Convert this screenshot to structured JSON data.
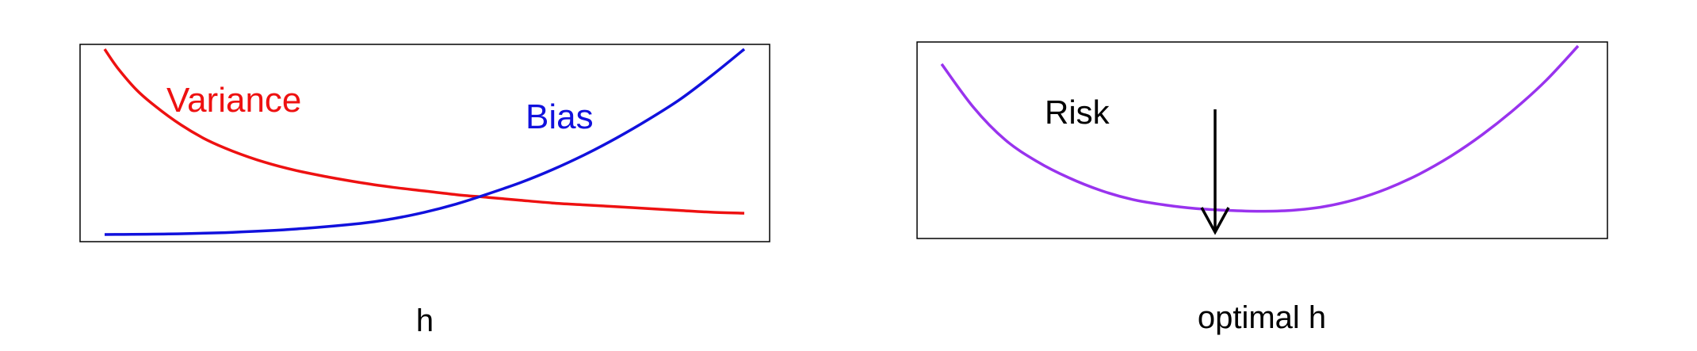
{
  "chart_data": [
    {
      "type": "line",
      "xlabel": "h",
      "series": [
        {
          "name": "Variance",
          "color": "#ee1111",
          "x": [
            0,
            0.02,
            0.05,
            0.08,
            0.12,
            0.16,
            0.2,
            0.25,
            0.3,
            0.35,
            0.4,
            0.45,
            0.5,
            0.55,
            0.6,
            0.65,
            0.7,
            0.75,
            0.8,
            0.85,
            0.9,
            0.95,
            1.0
          ],
          "values": [
            1.0,
            0.9,
            0.78,
            0.69,
            0.59,
            0.51,
            0.45,
            0.39,
            0.345,
            0.31,
            0.28,
            0.255,
            0.235,
            0.215,
            0.2,
            0.185,
            0.17,
            0.16,
            0.15,
            0.14,
            0.13,
            0.12,
            0.115
          ]
        },
        {
          "name": "Bias",
          "color": "#1111dd",
          "x": [
            0,
            0.1,
            0.2,
            0.3,
            0.4,
            0.45,
            0.5,
            0.55,
            0.6,
            0.65,
            0.7,
            0.75,
            0.8,
            0.85,
            0.9,
            0.95,
            1.0
          ],
          "values": [
            0.0,
            0.003,
            0.012,
            0.03,
            0.06,
            0.085,
            0.12,
            0.165,
            0.22,
            0.28,
            0.35,
            0.43,
            0.52,
            0.62,
            0.73,
            0.86,
            1.0
          ]
        }
      ]
    },
    {
      "type": "line",
      "xlabel": "optimal h",
      "series": [
        {
          "name": "Risk",
          "color": "#9933ee",
          "x": [
            0,
            0.05,
            0.1,
            0.15,
            0.2,
            0.25,
            0.3,
            0.35,
            0.4,
            0.45,
            0.5,
            0.55,
            0.6,
            0.65,
            0.7,
            0.75,
            0.8,
            0.85,
            0.9,
            0.95,
            1.0
          ],
          "values": [
            0.9,
            0.66,
            0.48,
            0.36,
            0.27,
            0.2,
            0.15,
            0.12,
            0.1,
            0.09,
            0.085,
            0.09,
            0.11,
            0.15,
            0.21,
            0.29,
            0.39,
            0.51,
            0.65,
            0.81,
            1.0
          ]
        }
      ],
      "annotation": {
        "type": "arrow",
        "color": "#000000",
        "x": 0.45
      }
    }
  ]
}
